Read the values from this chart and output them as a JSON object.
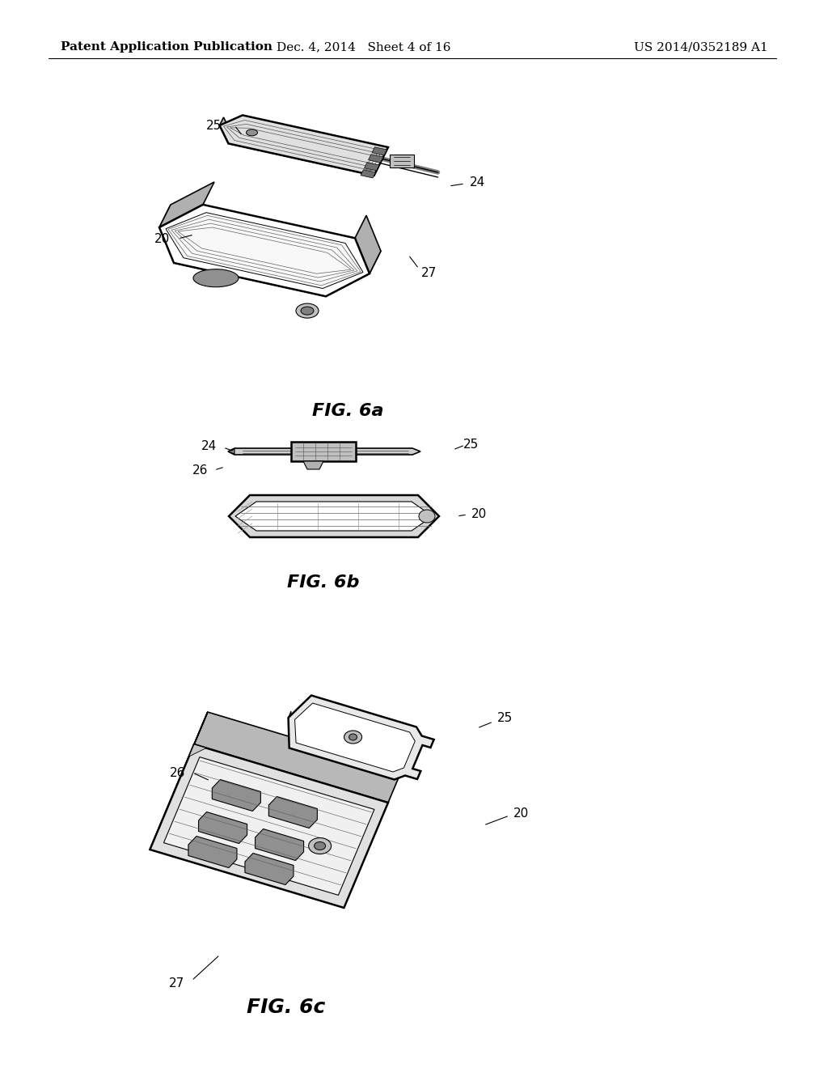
{
  "background_color": "#ffffff",
  "header_left": "Patent Application Publication",
  "header_mid": "Dec. 4, 2014   Sheet 4 of 16",
  "header_right": "US 2014/0352189 A1",
  "header_fontsize": 11,
  "fig6a_label": "FIG. 6a",
  "fig6b_label": "FIG. 6b",
  "fig6c_label": "FIG. 6c",
  "label_fontsize": 16,
  "ref_fontsize": 11,
  "lw_heavy": 1.8,
  "lw_med": 1.2,
  "lw_light": 0.7
}
